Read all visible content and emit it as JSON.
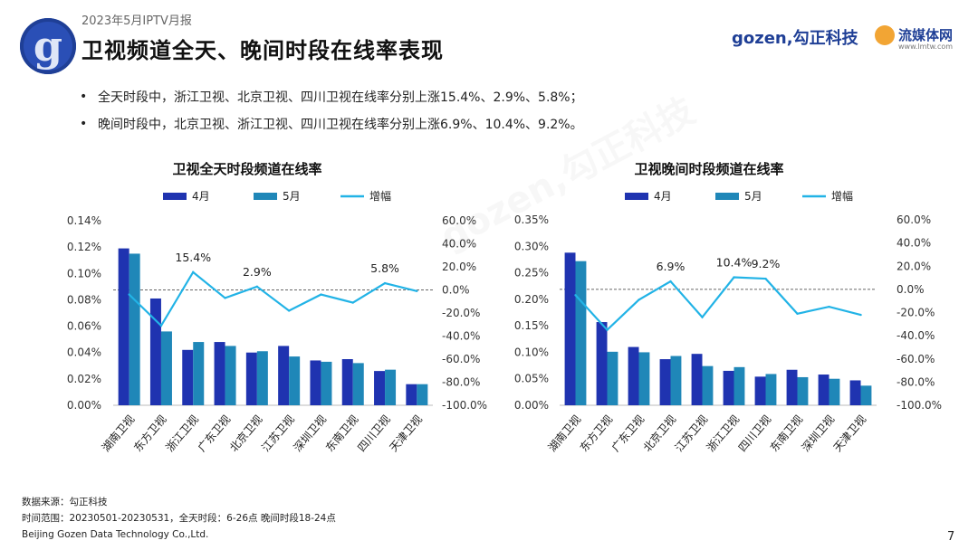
{
  "header": {
    "report_tag": "2023年5月IPTV月报",
    "title": "卫视频道全天、晚间时段在线率表现",
    "logo_letter": "g",
    "brand_gozen": "gozen,勾正科技",
    "brand_lmtw": "流媒体网",
    "brand_lmtw_url": "www.lmtw.com"
  },
  "bullets": [
    "全天时段中，浙江卫视、北京卫视、四川卫视在线率分别上涨15.4%、2.9%、5.8%；",
    "晚间时段中，北京卫视、浙江卫视、四川卫视在线率分别上涨6.9%、10.4%、9.2%。"
  ],
  "watermark": "gozen,勾正科技",
  "footer": {
    "source": "数据来源：勾正科技",
    "range": "时间范围：20230501-20230531，全天时段：6-26点 晚间时段18-24点",
    "company": "Beijing Gozen Data Technology Co.,Ltd."
  },
  "page_number": "7",
  "colors": {
    "april": "#1f33b0",
    "may": "#1f87b8",
    "growth": "#22b3e6",
    "baseline": "#333333"
  },
  "chart_data": [
    {
      "type": "bar",
      "title": "卫视全天时段频道在线率",
      "legend": [
        "4月",
        "5月",
        "增幅"
      ],
      "categories": [
        "湖南卫视",
        "东方卫视",
        "浙江卫视",
        "广东卫视",
        "北京卫视",
        "江苏卫视",
        "深圳卫视",
        "东南卫视",
        "四川卫视",
        "天津卫视"
      ],
      "series": [
        {
          "name": "4月",
          "values": [
            0.119,
            0.081,
            0.042,
            0.048,
            0.04,
            0.045,
            0.034,
            0.035,
            0.026,
            0.016
          ]
        },
        {
          "name": "5月",
          "values": [
            0.115,
            0.056,
            0.048,
            0.045,
            0.041,
            0.037,
            0.033,
            0.032,
            0.027,
            0.016
          ]
        },
        {
          "name": "增幅",
          "axis": "right",
          "values": [
            -4,
            -31,
            15.4,
            -7,
            2.9,
            -18,
            -4,
            -11,
            5.8,
            -1
          ]
        }
      ],
      "annotations": [
        {
          "index": 2,
          "text": "15.4%"
        },
        {
          "index": 4,
          "text": "2.9%"
        },
        {
          "index": 8,
          "text": "5.8%"
        }
      ],
      "left_ticks": [
        "0.00%",
        "0.02%",
        "0.04%",
        "0.06%",
        "0.08%",
        "0.10%",
        "0.12%",
        "0.14%"
      ],
      "right_ticks": [
        "-100.0%",
        "-80.0%",
        "-60.0%",
        "-40.0%",
        "-20.0%",
        "0.0%",
        "20.0%",
        "40.0%",
        "60.0%"
      ],
      "ylim_left": [
        0,
        0.14
      ],
      "ylim_right": [
        -100,
        60
      ],
      "grid": false
    },
    {
      "type": "bar",
      "title": "卫视晚间时段频道在线率",
      "legend": [
        "4月",
        "5月",
        "增幅"
      ],
      "categories": [
        "湖南卫视",
        "东方卫视",
        "广东卫视",
        "北京卫视",
        "江苏卫视",
        "浙江卫视",
        "四川卫视",
        "东南卫视",
        "深圳卫视",
        "天津卫视"
      ],
      "series": [
        {
          "name": "4月",
          "values": [
            0.288,
            0.157,
            0.11,
            0.087,
            0.097,
            0.065,
            0.054,
            0.067,
            0.058,
            0.047
          ]
        },
        {
          "name": "5月",
          "values": [
            0.272,
            0.101,
            0.1,
            0.093,
            0.074,
            0.072,
            0.059,
            0.053,
            0.05,
            0.037
          ]
        },
        {
          "name": "增幅",
          "axis": "right",
          "values": [
            -5,
            -35,
            -9,
            6.9,
            -24,
            10.4,
            9.2,
            -21,
            -15,
            -22
          ]
        }
      ],
      "annotations": [
        {
          "index": 3,
          "text": "6.9%"
        },
        {
          "index": 5,
          "text": "10.4%"
        },
        {
          "index": 6,
          "text": "9.2%"
        }
      ],
      "left_ticks": [
        "0.00%",
        "0.05%",
        "0.10%",
        "0.15%",
        "0.20%",
        "0.25%",
        "0.30%",
        "0.35%"
      ],
      "right_ticks": [
        "-100.0%",
        "-80.0%",
        "-60.0%",
        "-40.0%",
        "-20.0%",
        "0.0%",
        "20.0%",
        "40.0%",
        "60.0%"
      ],
      "ylim_left": [
        0,
        0.35
      ],
      "ylim_right": [
        -100,
        60
      ],
      "grid": false
    }
  ]
}
